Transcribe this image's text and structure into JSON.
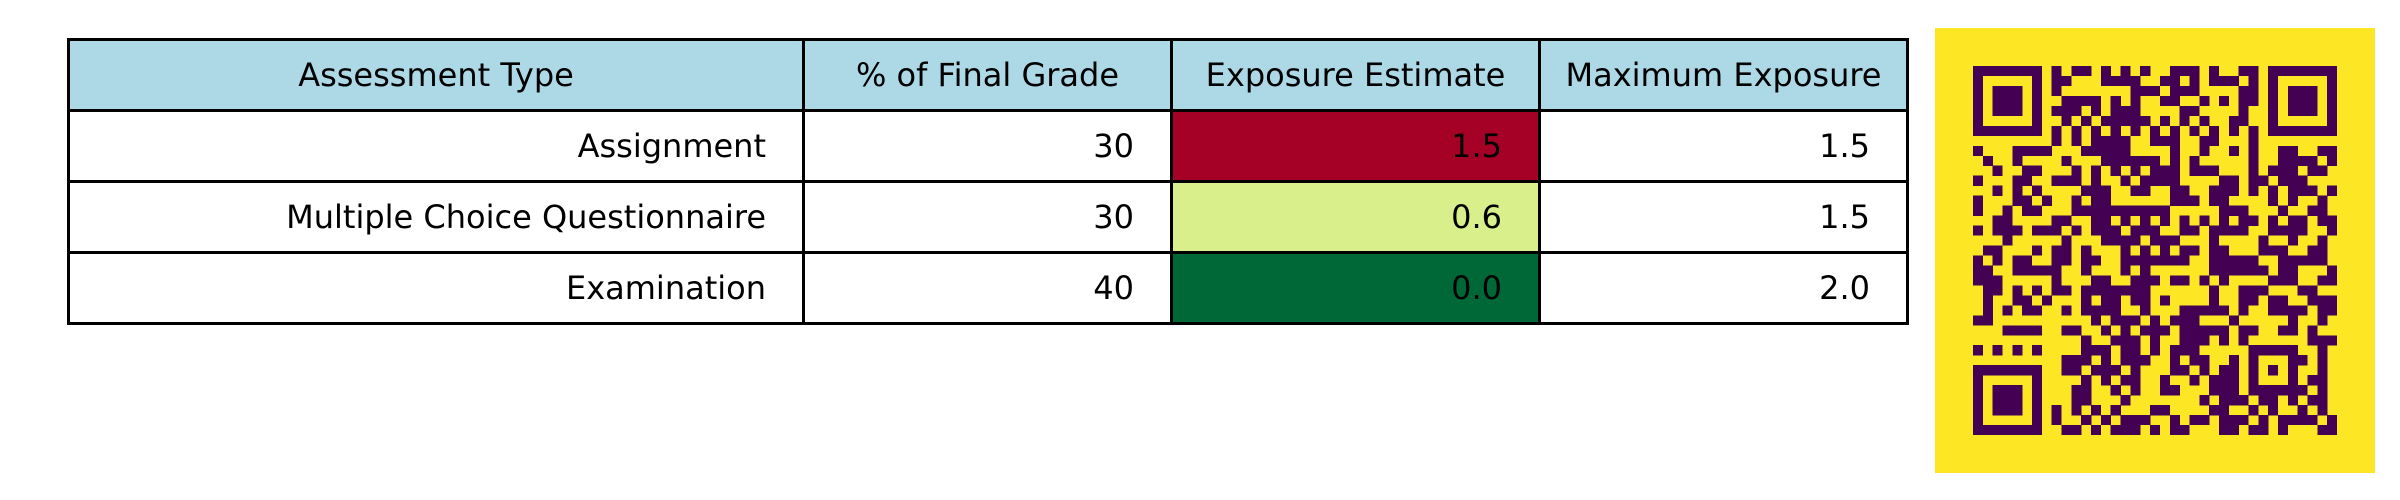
{
  "chart_data": {
    "type": "table",
    "columns": [
      "Assessment Type",
      "% of Final Grade",
      "Exposure Estimate",
      "Maximum Exposure"
    ],
    "rows": [
      {
        "cells": [
          "Assignment",
          "30",
          "1.5",
          "1.5"
        ],
        "exposure": 1.5,
        "exposure_color": "#a50026"
      },
      {
        "cells": [
          "Multiple Choice Questionnaire",
          "30",
          "0.6",
          "1.5"
        ],
        "exposure": 0.6,
        "exposure_color": "#d9ef8b"
      },
      {
        "cells": [
          "Examination",
          "40",
          "0.0",
          "2.0"
        ],
        "exposure": 0.0,
        "exposure_color": "#006837"
      }
    ],
    "header_color": "#add8e6",
    "colormap": "RdYlGn_r"
  },
  "qr_code": {
    "icon": "qr-code-icon",
    "foreground": "#440154",
    "background": "#fde725"
  }
}
